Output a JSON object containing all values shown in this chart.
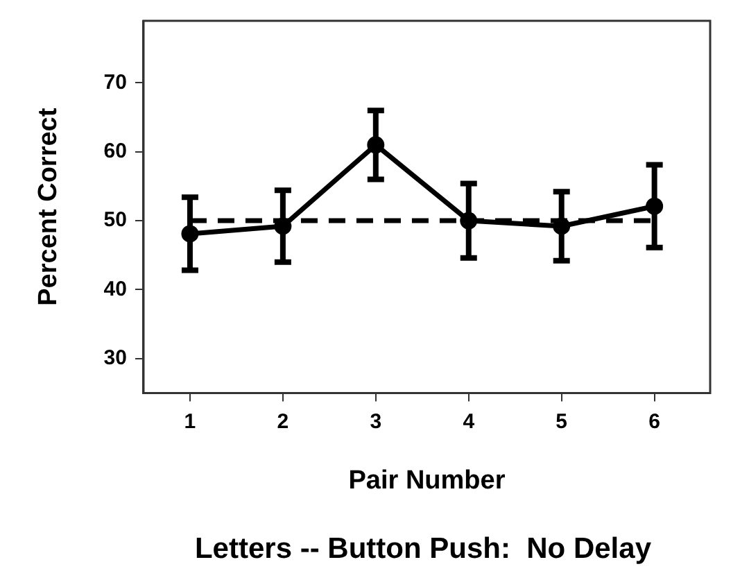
{
  "chart_data": {
    "type": "line",
    "title": "Letters -- Button Push:  No Delay",
    "xlabel": "Pair Number",
    "ylabel": "Percent Correct",
    "xlim": [
      0.5,
      6.6
    ],
    "xticks": [
      1,
      2,
      3,
      4,
      5,
      6
    ],
    "ylim": [
      25,
      79
    ],
    "yticks": [
      30,
      40,
      50,
      60,
      70
    ],
    "series": [
      {
        "x": [
          1,
          2,
          3,
          4,
          5,
          6
        ],
        "values": [
          48.1,
          49.2,
          61,
          50,
          49.2,
          52.1
        ],
        "errors": [
          5.3,
          5.2,
          5,
          5.4,
          5,
          6
        ],
        "color": "#000000",
        "marker": "circle",
        "line_style": "solid"
      },
      {
        "x": [
          1,
          6
        ],
        "values": [
          50,
          50
        ],
        "color": "#000000",
        "marker": "none",
        "line_style": "dashed"
      }
    ],
    "grid": false,
    "legend": false
  }
}
